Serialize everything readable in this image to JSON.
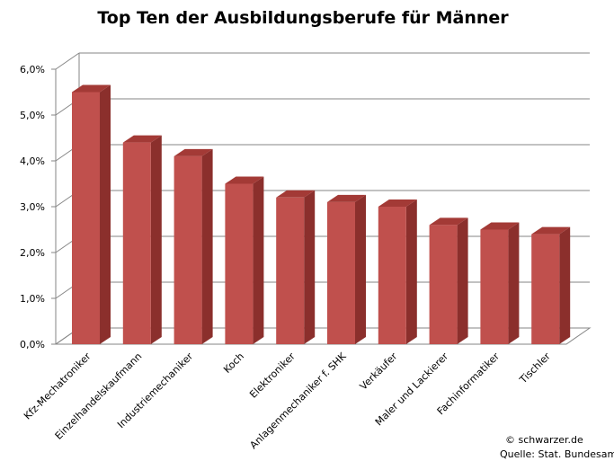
{
  "chart_data": {
    "type": "bar",
    "title": "Top Ten der Ausbildungsberufe für Männer",
    "xlabel": "",
    "ylabel": "",
    "categories": [
      "Kfz-Mechatroniker",
      "Einzelhandelskaufmann",
      "Industriemechaniker",
      "Koch",
      "Elektroniker",
      "Anlagenmechaniker f. SHK",
      "Verkäufer",
      "Maler und Lackierer",
      "Fachinformatiker",
      "Tischler"
    ],
    "values": [
      5.5,
      4.4,
      4.1,
      3.5,
      3.2,
      3.1,
      3.0,
      2.6,
      2.5,
      2.4
    ],
    "ylim": [
      0,
      6
    ],
    "yticks": [
      "0,0%",
      "1,0%",
      "2,0%",
      "3,0%",
      "4,0%",
      "5,0%",
      "6,0%"
    ],
    "grid": true,
    "legend": "none",
    "bar_color": "#c0504d",
    "bar_top_color": "#a33a36",
    "bar_side_color": "#8b2f2c"
  },
  "credits": {
    "line1": "© schwarzer.de",
    "line2": "Quelle: Stat. Bundesamt"
  }
}
